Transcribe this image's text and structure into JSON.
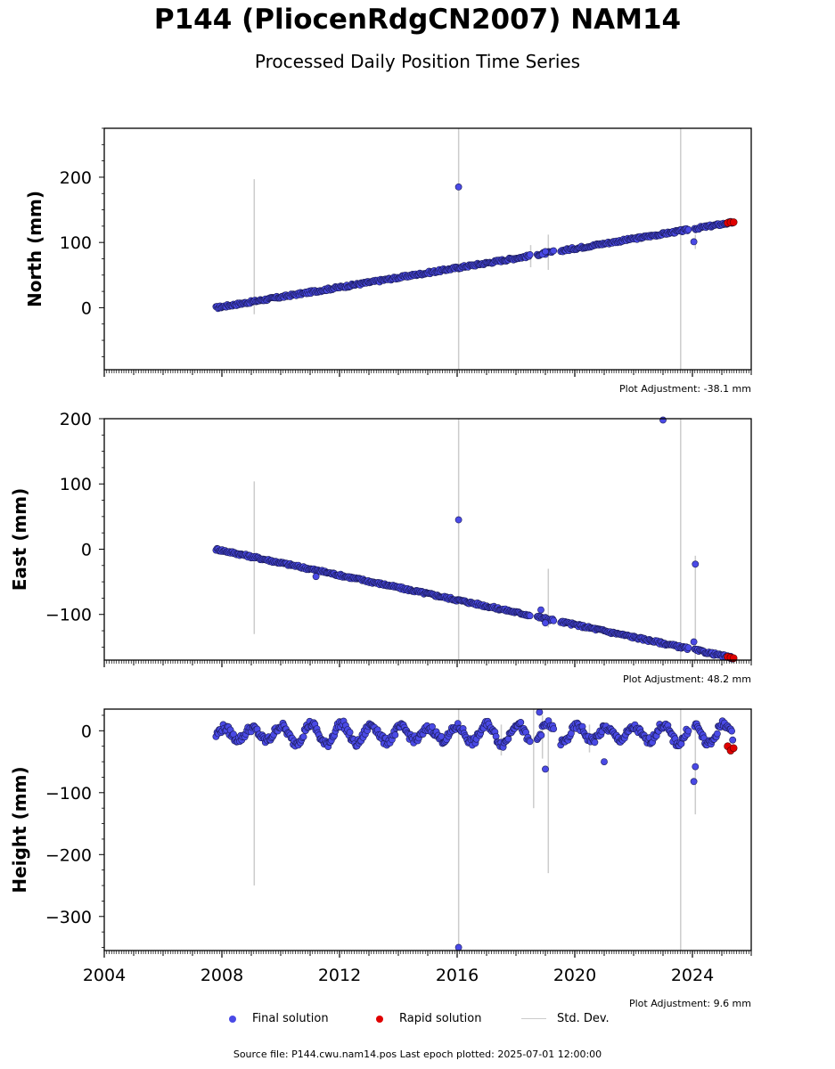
{
  "header": {
    "title": "P144 (PliocenRdgCN2007) NAM14",
    "subtitle": "Processed Daily Position Time Series"
  },
  "legend": {
    "final_label": "Final solution",
    "rapid_label": "Rapid solution",
    "std_label": "Std. Dev.",
    "final_color": "#4a4ae6",
    "rapid_color": "#e00000",
    "std_color": "#cccccc"
  },
  "footer": {
    "source": "Source file: P144.cwu.nam14.pos  Last epoch plotted: 2025-07-01 12:00:00"
  },
  "chart_data": [
    {
      "type": "scatter",
      "ylabel": "North (mm)",
      "adjustment": "Plot Adjustment: -38.1 mm",
      "xlim": [
        2004.0,
        2026.0
      ],
      "ylim": [
        -95,
        275
      ],
      "yticks": [
        0,
        100,
        200
      ],
      "trend": [
        [
          2007.8,
          0
        ],
        [
          2025.4,
          131
        ]
      ],
      "gaps": [
        [
          2018.5,
          2018.7
        ],
        [
          2019.3,
          2019.5
        ],
        [
          2023.9,
          2024.05
        ]
      ],
      "noise_amp": 2,
      "outliers": [
        [
          2016.05,
          185
        ],
        [
          2024.05,
          101
        ],
        [
          2018.9,
          82
        ],
        [
          2019.0,
          86
        ]
      ],
      "std_bars": [
        [
          2009.1,
          -10,
          197
        ],
        [
          2016.05,
          -95,
          275
        ],
        [
          2023.6,
          -95,
          275
        ],
        [
          2018.5,
          62,
          96
        ],
        [
          2019.1,
          58,
          112
        ],
        [
          2024.1,
          90,
          112
        ]
      ],
      "rapid": [
        [
          2025.2,
          130
        ],
        [
          2025.3,
          131
        ],
        [
          2025.4,
          131
        ]
      ]
    },
    {
      "type": "scatter",
      "ylabel": "East (mm)",
      "adjustment": "Plot Adjustment: 48.2 mm",
      "xlim": [
        2004.0,
        2026.0
      ],
      "ylim": [
        -170,
        200
      ],
      "yticks": [
        -100,
        0,
        100,
        200
      ],
      "trend": [
        [
          2007.8,
          0
        ],
        [
          2025.4,
          -167
        ]
      ],
      "gaps": [
        [
          2018.5,
          2018.7
        ],
        [
          2019.3,
          2019.5
        ],
        [
          2023.9,
          2024.05
        ]
      ],
      "noise_amp": 2,
      "outliers": [
        [
          2016.05,
          45
        ],
        [
          2023.0,
          198
        ],
        [
          2024.1,
          -23
        ],
        [
          2024.05,
          -142
        ],
        [
          2011.2,
          -42
        ],
        [
          2019.0,
          -113
        ],
        [
          2018.85,
          -93
        ]
      ],
      "std_bars": [
        [
          2009.1,
          -130,
          104
        ],
        [
          2016.05,
          -170,
          200
        ],
        [
          2023.6,
          -170,
          200
        ],
        [
          2019.1,
          -120,
          -30
        ],
        [
          2024.1,
          -170,
          -10
        ]
      ],
      "rapid": [
        [
          2025.2,
          -165
        ],
        [
          2025.3,
          -166
        ],
        [
          2025.4,
          -167
        ]
      ]
    },
    {
      "type": "scatter",
      "ylabel": "Height (mm)",
      "adjustment": "Plot Adjustment: 9.6 mm",
      "xlim": [
        2004.0,
        2026.0
      ],
      "ylim": [
        -355,
        35
      ],
      "yticks": [
        -300,
        -200,
        -100,
        0
      ],
      "xticks": [
        2004,
        2008,
        2012,
        2016,
        2020,
        2024
      ],
      "seasonal": {
        "start": 2007.8,
        "end": 2025.4,
        "amplitude": 13,
        "offset": -5
      },
      "gaps": [
        [
          2018.5,
          2018.7
        ],
        [
          2019.3,
          2019.5
        ],
        [
          2023.9,
          2024.05
        ]
      ],
      "noise_amp": 6,
      "outliers": [
        [
          2016.05,
          -350
        ],
        [
          2018.8,
          30
        ],
        [
          2019.0,
          -62
        ],
        [
          2024.05,
          -82
        ],
        [
          2024.1,
          -58
        ],
        [
          2021.0,
          -50
        ]
      ],
      "std_bars": [
        [
          2009.1,
          -250,
          10
        ],
        [
          2016.05,
          -355,
          35
        ],
        [
          2023.6,
          -355,
          35
        ],
        [
          2018.6,
          -125,
          35
        ],
        [
          2019.1,
          -230,
          0
        ],
        [
          2024.1,
          -135,
          10
        ],
        [
          2018.9,
          -45,
          25
        ],
        [
          2017.5,
          -40,
          10
        ],
        [
          2020.5,
          -35,
          10
        ]
      ],
      "rapid": [
        [
          2025.2,
          -25
        ],
        [
          2025.3,
          -32
        ],
        [
          2025.4,
          -28
        ]
      ]
    }
  ]
}
